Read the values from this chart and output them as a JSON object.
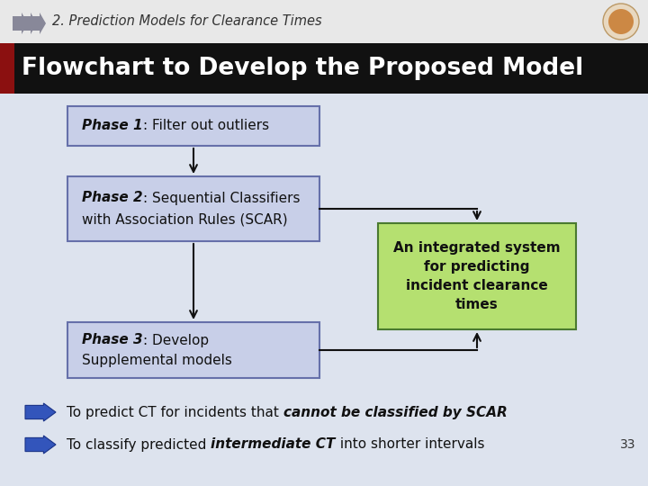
{
  "title_small": "2. Prediction Models for Clearance Times",
  "title_main": "Flowchart to Develop the Proposed Model",
  "bg_color": "#dde3ee",
  "header_bg": "#111111",
  "header_text_color": "#ffffff",
  "box_fill": "#c8cfe8",
  "box_edge": "#6670aa",
  "box4_fill": "#b5e070",
  "box4_edge": "#4a7a30",
  "arrow_color": "#111111",
  "bullet_arrow_color": "#3355bb",
  "bullet_arrow_edge": "#1a3388",
  "page_num": "33",
  "small_title_color": "#333333",
  "red_bar_color": "#8b1010",
  "top_strip_color": "#e8e8e8",
  "icon_arrow_color": "#888899"
}
